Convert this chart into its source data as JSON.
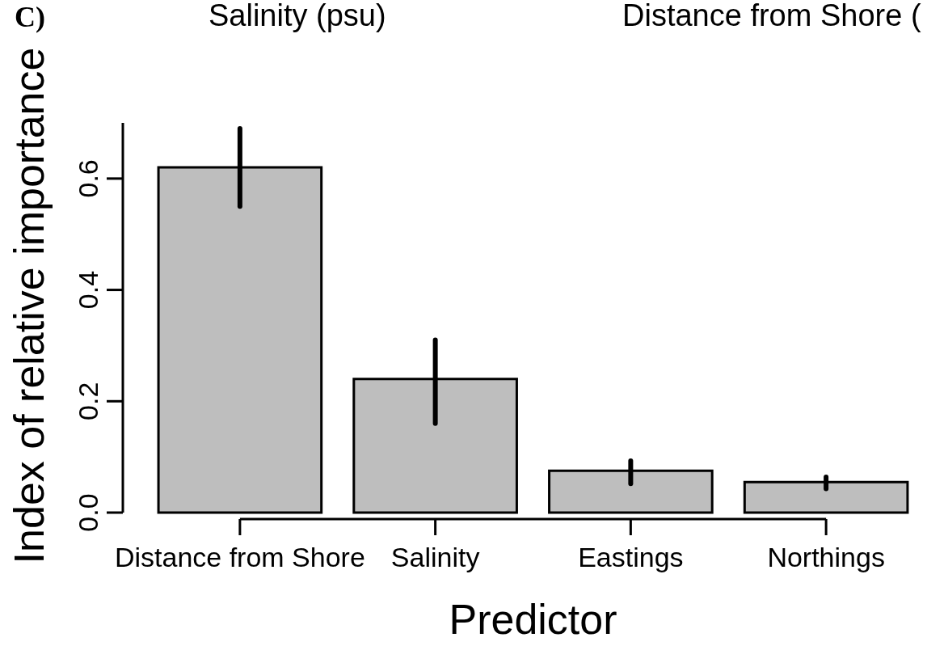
{
  "chart_data": {
    "type": "bar",
    "xlabel": "Predictor",
    "ylabel": "Index of relative importance",
    "categories": [
      "Distance from Shore",
      "Salinity",
      "Eastings",
      "Northings"
    ],
    "values": [
      0.62,
      0.24,
      0.075,
      0.055
    ],
    "color": "#bebebe",
    "errors": [
      [
        0.55,
        0.69
      ],
      [
        0.16,
        0.31
      ],
      [
        0.052,
        0.093
      ],
      [
        0.043,
        0.064
      ]
    ],
    "ylim": [
      0,
      0.7
    ],
    "yticks": [
      {
        "value": 0,
        "label": "0.0"
      },
      0.2,
      0.4,
      0.6
    ],
    "annotations": [
      "C)",
      "Salinity (psu)",
      "Distance from Shore ("
    ]
  }
}
